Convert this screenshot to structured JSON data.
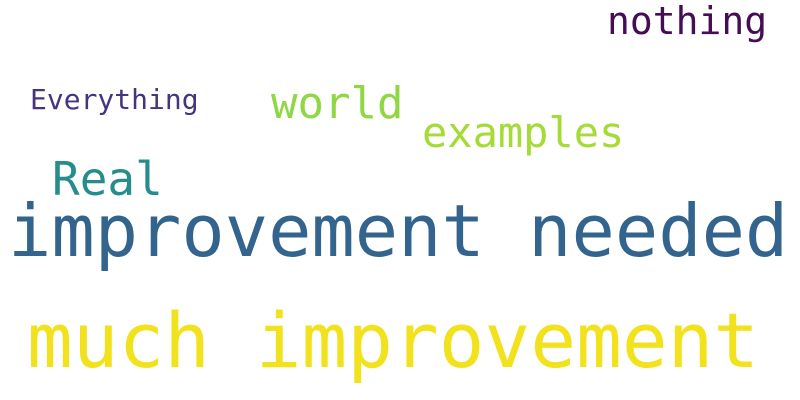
{
  "word_cloud": {
    "background_color": "#ffffff",
    "words": [
      {
        "id": "improvement-needed",
        "text": "improvement needed",
        "color": "#32648e"
      },
      {
        "id": "much-improvement",
        "text": "much improvement",
        "color": "#f2e21d"
      },
      {
        "id": "nothing",
        "text": "nothing",
        "color": "#440d54"
      },
      {
        "id": "world",
        "text": "world",
        "color": "#8fd744"
      },
      {
        "id": "examples",
        "text": "examples",
        "color": "#a5db36"
      },
      {
        "id": "everything",
        "text": "Everything",
        "color": "#463480"
      },
      {
        "id": "real",
        "text": "Real",
        "color": "#278d8c"
      }
    ]
  }
}
